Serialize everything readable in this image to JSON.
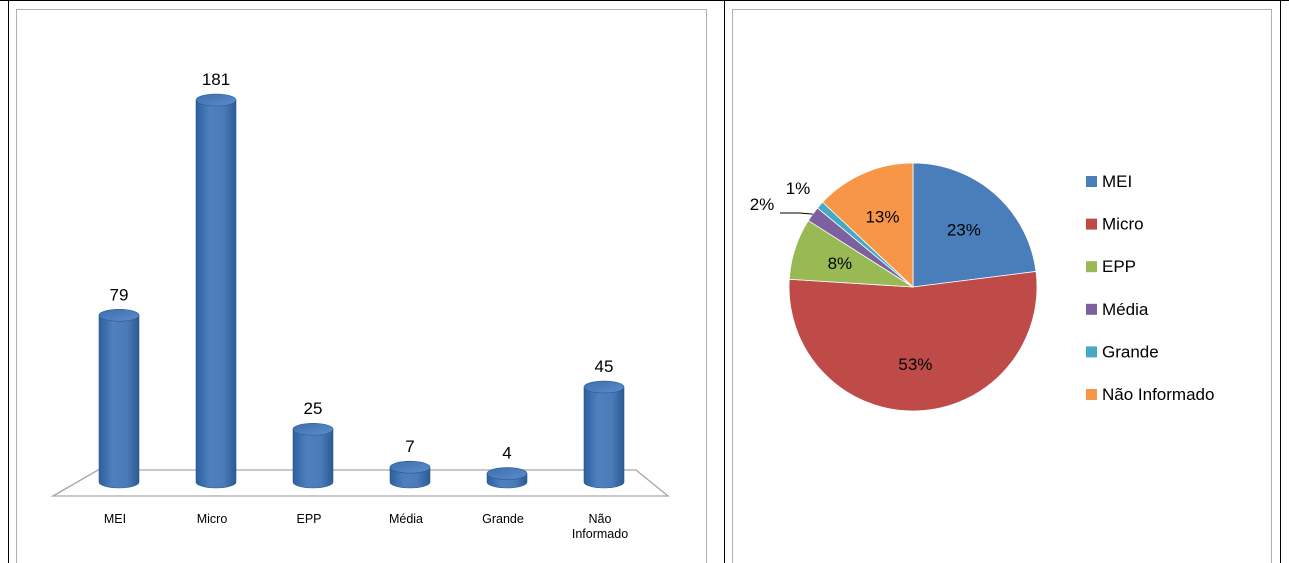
{
  "chart_data": [
    {
      "type": "bar",
      "style": "3d-cylinder",
      "categories": [
        "MEI",
        "Micro",
        "EPP",
        "Média",
        "Grande",
        "Não Informado"
      ],
      "category_lines": [
        [
          "MEI"
        ],
        [
          "Micro"
        ],
        [
          "EPP"
        ],
        [
          "Média"
        ],
        [
          "Grande"
        ],
        [
          "Não",
          "Informado"
        ]
      ],
      "values": [
        79,
        181,
        25,
        7,
        4,
        45
      ],
      "data_labels": [
        "79",
        "181",
        "25",
        "7",
        "4",
        "45"
      ],
      "ylim": [
        0,
        181
      ],
      "grid": false,
      "legend": "none",
      "bar_color": "#4f81bd"
    },
    {
      "type": "pie",
      "slices": [
        {
          "label": "MEI",
          "value": 23,
          "text": "23%",
          "color": "#4a7ebb"
        },
        {
          "label": "Micro",
          "value": 53,
          "text": "53%",
          "color": "#be4b48"
        },
        {
          "label": "EPP",
          "value": 8,
          "text": "8%",
          "color": "#98b954"
        },
        {
          "label": "Média",
          "value": 2,
          "text": "2%",
          "color": "#7d60a0"
        },
        {
          "label": "Grande",
          "value": 1,
          "text": "1%",
          "color": "#46aac5"
        },
        {
          "label": "Não Informado",
          "value": 13,
          "text": "13%",
          "color": "#f79646"
        }
      ],
      "legend": "right"
    }
  ]
}
